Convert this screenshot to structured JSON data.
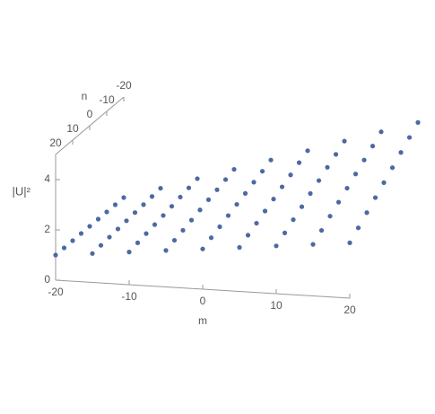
{
  "chart_data": {
    "type": "scatter3d",
    "xlabel": "m",
    "ylabel": "n",
    "zlabel": "|U|²",
    "x": [
      -20,
      -15,
      -10,
      -5,
      0,
      5,
      10,
      15,
      20
    ],
    "y": [
      -20,
      -15,
      -10,
      -5,
      0,
      5,
      10,
      15,
      20
    ],
    "values": [
      [
        1,
        1,
        1,
        1,
        1,
        1,
        1,
        1,
        1
      ],
      [
        1.46,
        1.42,
        1.38,
        1.35,
        1.31,
        1.27,
        1.23,
        1.19,
        1.15
      ],
      [
        1.93,
        1.85,
        1.77,
        1.69,
        1.61,
        1.53,
        1.46,
        1.38,
        1.3
      ],
      [
        2.39,
        2.27,
        2.15,
        2.04,
        1.92,
        1.8,
        1.68,
        1.57,
        1.45
      ],
      [
        2.85,
        2.69,
        2.54,
        2.38,
        2.23,
        2.07,
        1.91,
        1.76,
        1.6
      ],
      [
        3.31,
        3.12,
        2.92,
        2.73,
        2.53,
        2.34,
        2.14,
        1.95,
        1.75
      ],
      [
        3.78,
        3.54,
        3.31,
        3.07,
        2.84,
        2.6,
        2.37,
        2.13,
        1.9
      ],
      [
        4.24,
        3.96,
        3.69,
        3.42,
        3.14,
        2.87,
        2.6,
        2.32,
        2.05
      ],
      [
        4.7,
        4.39,
        4.08,
        3.76,
        3.45,
        3.14,
        2.83,
        2.51,
        2.2
      ]
    ],
    "color": "#4b6aa3",
    "xlim": [
      -20,
      20
    ],
    "ylim": [
      -20,
      20
    ],
    "zlim": [
      0,
      5
    ],
    "xticks": [
      -20,
      -10,
      0,
      10,
      20
    ],
    "yticks": [
      -20,
      -10,
      0,
      10,
      20
    ],
    "zticks": [
      0,
      2,
      4
    ]
  }
}
